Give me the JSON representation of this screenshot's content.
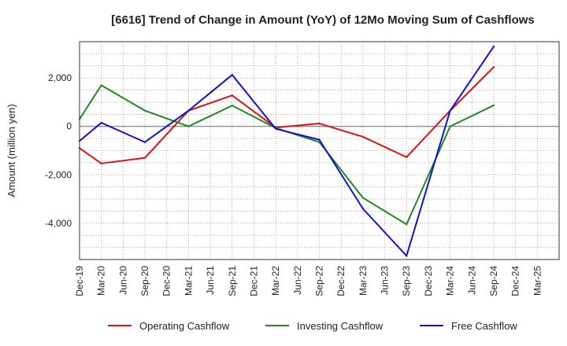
{
  "chart_data": {
    "type": "line",
    "title": "[6616]  Trend of Change in Amount (YoY) of 12Mo Moving Sum of Cashflows",
    "xlabel": "",
    "ylabel": "Amount (million yen)",
    "ylim": [
      -5500,
      3500
    ],
    "yticks": [
      2000,
      0,
      -2000,
      -4000
    ],
    "ytick_labels": [
      "2,000",
      "0",
      "-2,000",
      "-4,000"
    ],
    "categories": [
      "Dec-19",
      "Mar-20",
      "Jun-20",
      "Sep-20",
      "Dec-20",
      "Mar-21",
      "Jun-21",
      "Sep-21",
      "Dec-21",
      "Mar-22",
      "Jun-22",
      "Sep-22",
      "Dec-22",
      "Mar-23",
      "Jun-23",
      "Sep-23",
      "Dec-23",
      "Mar-24",
      "Jun-24",
      "Sep-24",
      "Dec-24",
      "Mar-25"
    ],
    "series": [
      {
        "name": "Operating Cashflow",
        "color": "#dd1111",
        "values": [
          -900,
          -1530,
          null,
          -1300,
          null,
          650,
          null,
          1280,
          null,
          -50,
          null,
          120,
          null,
          -430,
          null,
          -1270,
          null,
          650,
          null,
          2450,
          null,
          null
        ]
      },
      {
        "name": "Investing Cashflow",
        "color": "#228822",
        "values": [
          300,
          1700,
          null,
          650,
          null,
          0,
          null,
          860,
          null,
          -70,
          null,
          -650,
          null,
          -2950,
          null,
          -4050,
          null,
          0,
          null,
          870,
          null,
          null
        ]
      },
      {
        "name": "Free Cashflow",
        "color": "#1111cc",
        "values": [
          -600,
          150,
          null,
          -650,
          null,
          650,
          null,
          2130,
          null,
          -100,
          null,
          -550,
          null,
          -3400,
          null,
          -5350,
          null,
          650,
          null,
          3300,
          null,
          null
        ]
      }
    ],
    "legend_position": "bottom",
    "grid": true
  }
}
